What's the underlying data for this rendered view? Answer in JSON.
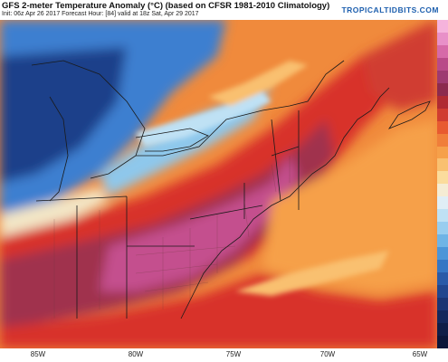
{
  "header": {
    "title": "GFS 2-meter Temperature Anomaly (°C) (based on CFSR 1981-2010 Climatology)",
    "subtitle": "Init: 06z Apr 26 2017   Forecast Hour: [84]   valid at 18z Sat, Apr 29 2017",
    "brand": "TROPICALTIDBITS.COM"
  },
  "x_axis": {
    "ticks": [
      "85W",
      "80W",
      "75W",
      "70W",
      "65W"
    ]
  },
  "colors": {
    "strong_cold": "#1f3f8a",
    "cold": "#3d7fd0",
    "cool": "#8ec8ec",
    "near_normal": "#f3e6c6",
    "warm": "#f08a3c",
    "hot": "#d8322a",
    "very_hot": "#a0304e",
    "extreme": "#c44f8e",
    "land_border": "#1a1a1a"
  },
  "colorbar": [
    "#f5b3dc",
    "#e890c8",
    "#d66aa8",
    "#b94a88",
    "#9e3a70",
    "#8c2a4e",
    "#b02a32",
    "#d03c30",
    "#e85a30",
    "#f07e3a",
    "#f6a04a",
    "#f9c070",
    "#fbdc9c",
    "#f5ecd4",
    "#e0eef6",
    "#bfe1f4",
    "#98cdef",
    "#6fb4e6",
    "#4c95d8",
    "#3676c4",
    "#2a5aa8",
    "#22468e",
    "#1c3574",
    "#15285c",
    "#101e48",
    "#0c163a"
  ]
}
